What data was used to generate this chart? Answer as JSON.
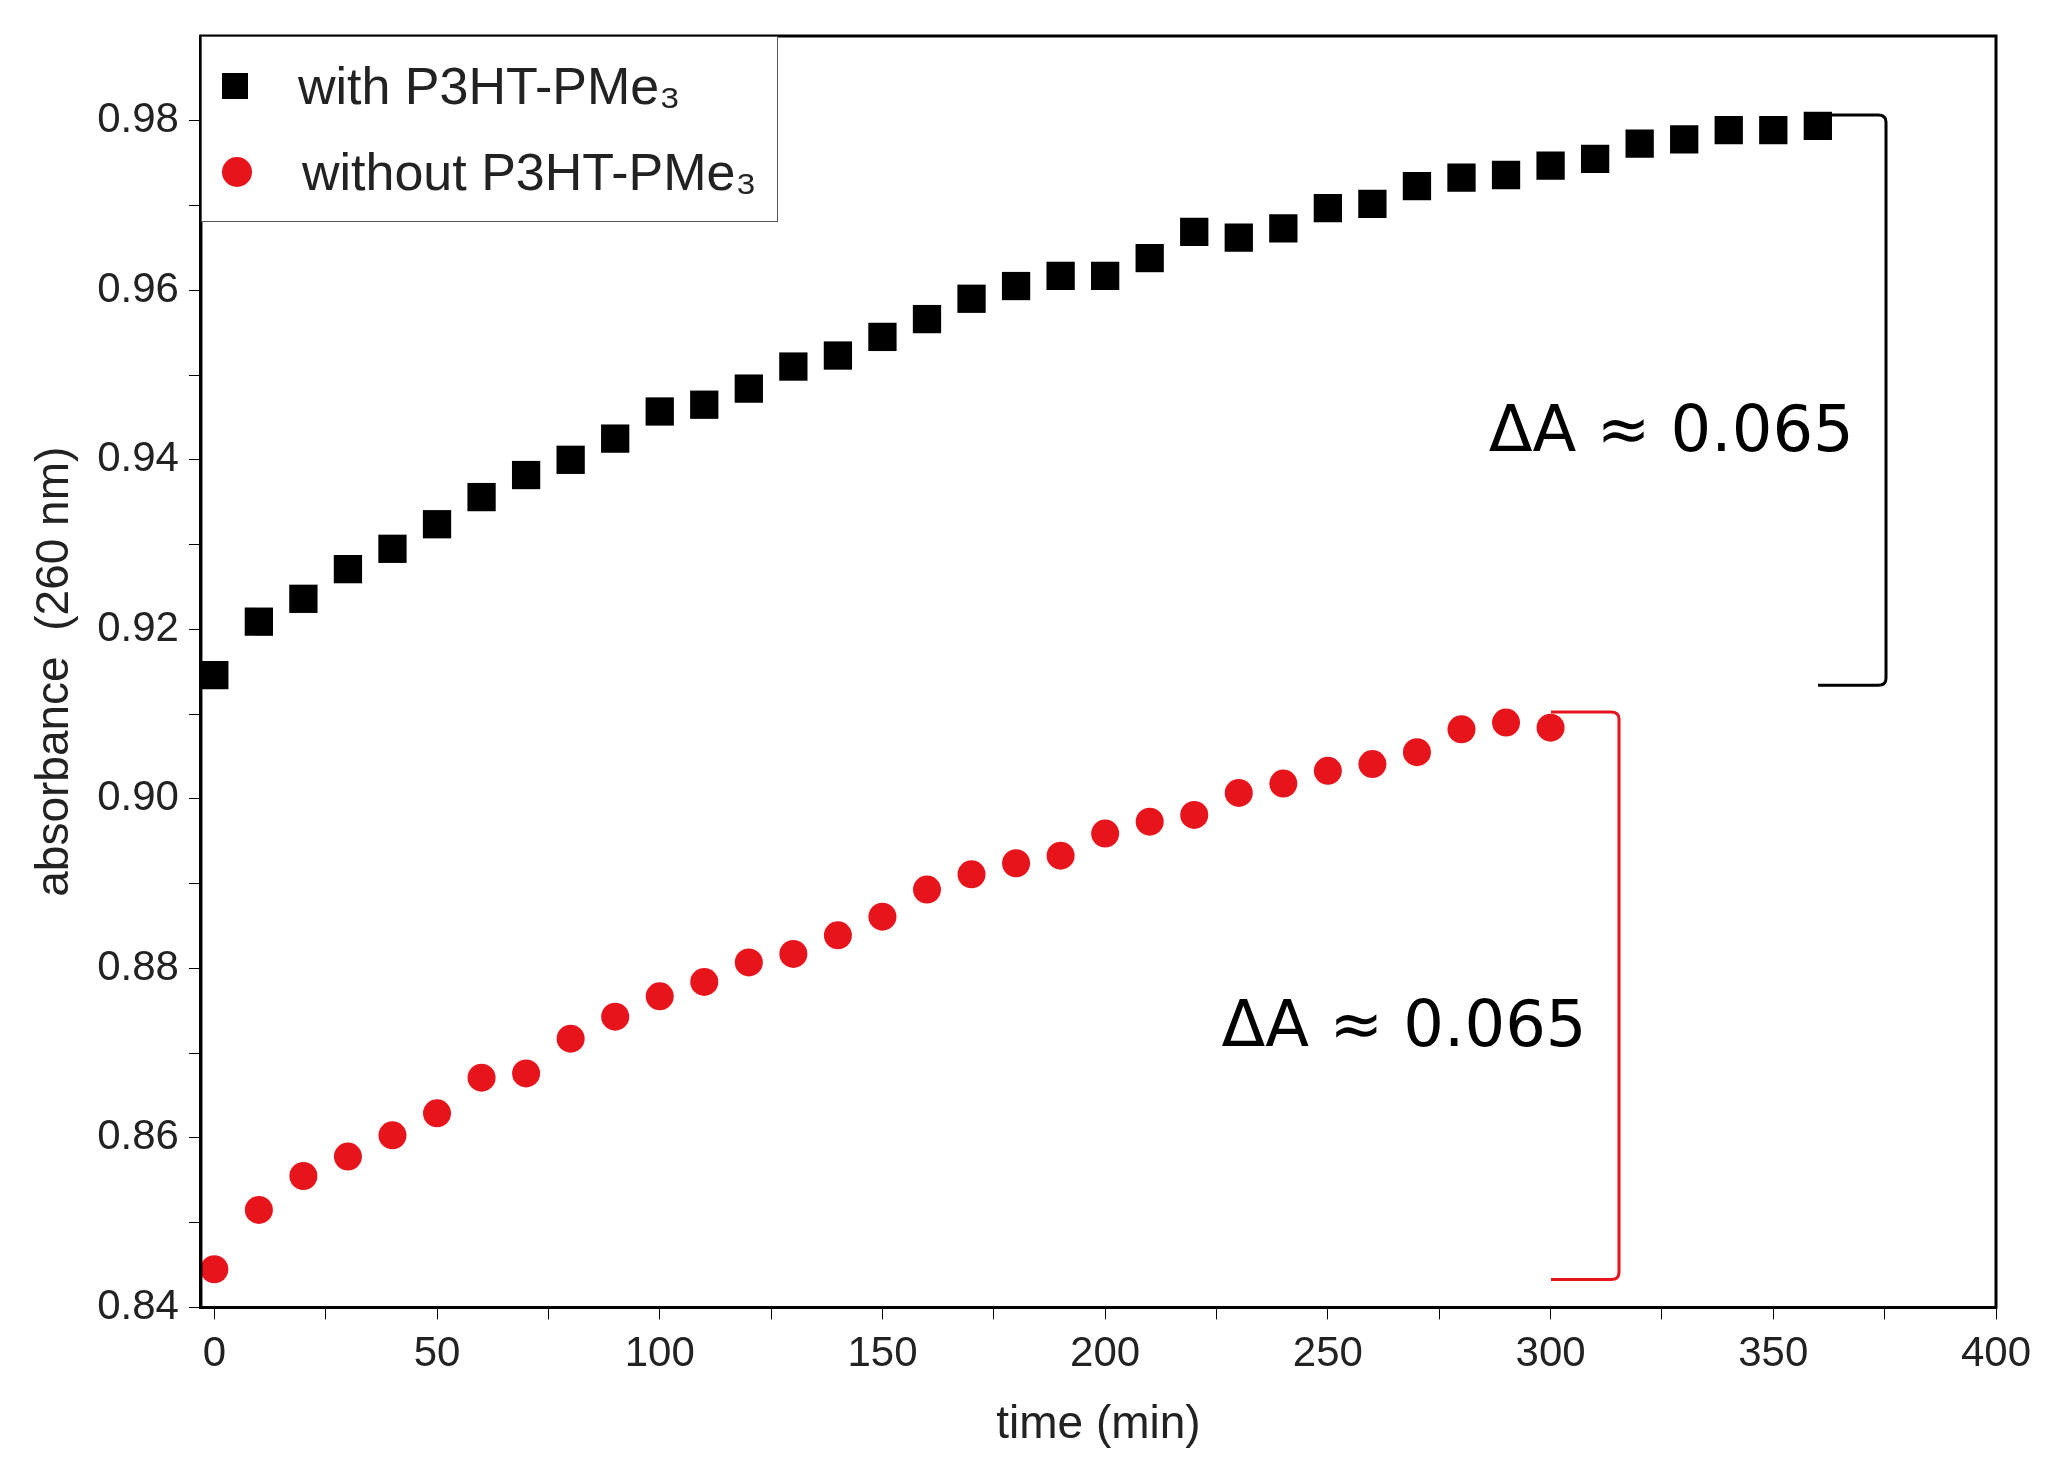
{
  "chart_data": {
    "type": "scatter",
    "xlabel": "time (min)",
    "ylabel": "absorbance  (260 nm)",
    "xlim": [
      -3,
      400
    ],
    "ylim": [
      0.84,
      0.99
    ],
    "xticks": [
      0,
      {
        "value": 25,
        "label": null
      },
      50,
      {
        "value": 75,
        "label": null
      },
      100,
      {
        "value": 125,
        "label": null
      },
      150,
      {
        "value": 175,
        "label": null
      },
      200,
      {
        "value": 225,
        "label": null
      },
      250,
      {
        "value": 275,
        "label": null
      },
      300,
      {
        "value": 325,
        "label": null
      },
      350,
      {
        "value": 375,
        "label": null
      },
      400
    ],
    "yticks": [
      0.84,
      {
        "value": 0.85,
        "label": null
      },
      0.86,
      {
        "value": 0.87,
        "label": null
      },
      0.88,
      {
        "value": 0.89,
        "label": null
      },
      {
        "value": 0.9,
        "label": "0.90"
      },
      {
        "value": 0.91,
        "label": null
      },
      0.92,
      {
        "value": 0.93,
        "label": null
      },
      0.94,
      {
        "value": 0.95,
        "label": null
      },
      0.96,
      {
        "value": 0.97,
        "label": null
      },
      0.98
    ],
    "legend": "top left",
    "grid": false,
    "series": [
      {
        "name": "with P3HT-PMe₃",
        "color": "#000000",
        "marker": "square",
        "x": [
          0,
          10,
          20,
          30,
          40,
          50,
          60,
          70,
          80,
          90,
          100,
          110,
          120,
          130,
          140,
          150,
          160,
          170,
          180,
          190,
          200,
          210,
          220,
          230,
          240,
          250,
          260,
          270,
          280,
          290,
          300,
          310,
          320,
          330,
          340,
          350,
          360
        ],
        "values": [
          0.9146,
          0.9209,
          0.9236,
          0.9271,
          0.9295,
          0.9324,
          0.9356,
          0.9382,
          0.94,
          0.9425,
          0.9457,
          0.9465,
          0.9484,
          0.951,
          0.9523,
          0.9545,
          0.9566,
          0.959,
          0.9605,
          0.9617,
          0.9617,
          0.9638,
          0.9669,
          0.9662,
          0.9673,
          0.9697,
          0.9702,
          0.9723,
          0.9733,
          0.9736,
          0.9747,
          0.9755,
          0.9773,
          0.9778,
          0.9789,
          0.9789,
          0.9794
        ]
      },
      {
        "name": "without P3HT-PMe₃",
        "color": "#e8141c",
        "marker": "circle",
        "x": [
          0,
          10,
          20,
          30,
          40,
          50,
          60,
          70,
          80,
          90,
          100,
          110,
          120,
          130,
          140,
          150,
          160,
          170,
          180,
          190,
          200,
          210,
          220,
          230,
          240,
          250,
          260,
          270,
          280,
          290,
          300
        ],
        "values": [
          0.8445,
          0.8515,
          0.8555,
          0.8578,
          0.8603,
          0.8629,
          0.8671,
          0.8676,
          0.8717,
          0.8743,
          0.8767,
          0.8784,
          0.8807,
          0.8817,
          0.8839,
          0.8861,
          0.8893,
          0.8911,
          0.8924,
          0.8933,
          0.8959,
          0.8973,
          0.8981,
          0.9007,
          0.9018,
          0.9033,
          0.9041,
          0.9055,
          0.9082,
          0.909,
          0.9084
        ]
      }
    ],
    "annotations": [
      "ΔA ≈ 0.065",
      "ΔA ≈ 0.065"
    ]
  }
}
